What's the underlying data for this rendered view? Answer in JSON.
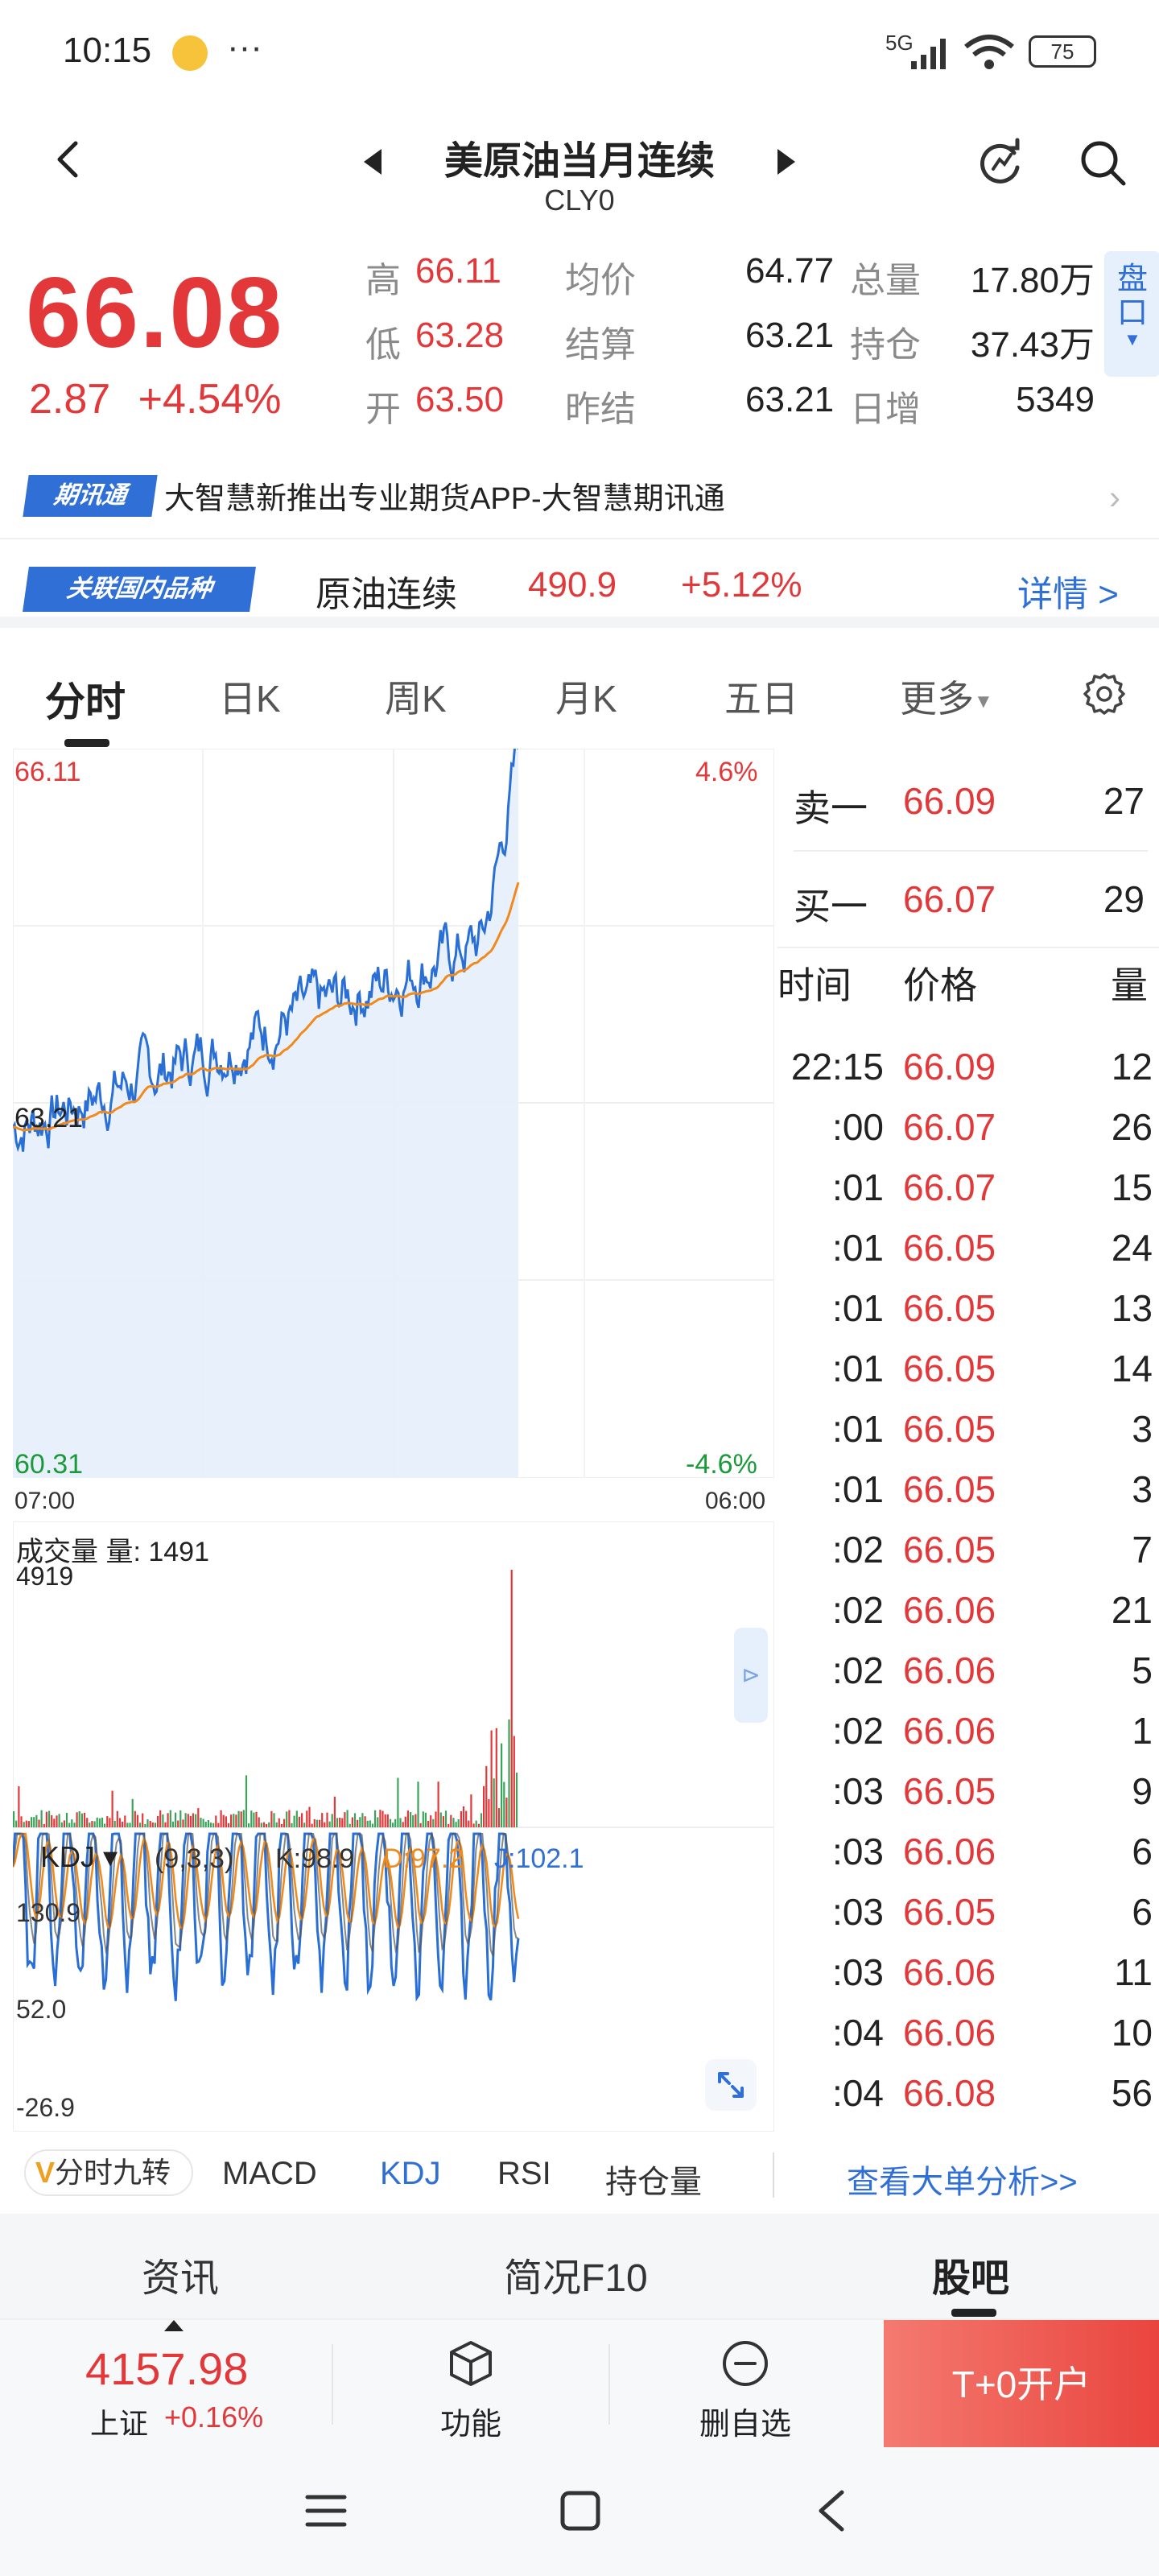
{
  "status_bar": {
    "time": "10:15",
    "dots": "···",
    "network": "5G",
    "battery": "75"
  },
  "header": {
    "title": "美原油当月连续",
    "subtitle": "CLY0"
  },
  "quote": {
    "last_price": "66.08",
    "change": "2.87",
    "change_pct": "+4.54%",
    "high_label": "高",
    "high": "66.11",
    "low_label": "低",
    "low": "63.28",
    "open_label": "开",
    "open": "63.50",
    "avg_label": "均价",
    "avg": "64.77",
    "settle_label": "结算",
    "settle": "63.21",
    "prev_settle_label": "昨结",
    "prev_settle": "63.21",
    "volume_label": "总量",
    "volume": "17.80万",
    "oi_label": "持仓",
    "oi": "37.43万",
    "daily_inc_label": "日增",
    "daily_inc": "5349",
    "pankou_label": "盘口"
  },
  "news": {
    "badge": "期讯通",
    "text": "大智慧新推出专业期货APP-大智慧期讯通"
  },
  "related": {
    "badge": "关联国内品种",
    "name": "原油连续",
    "price": "490.9",
    "change": "+5.12%",
    "detail": "详情 >"
  },
  "chart_tabs": [
    "分时",
    "日K",
    "周K",
    "月K",
    "五日",
    "更多"
  ],
  "chart": {
    "high": "66.11",
    "mid": "63.21",
    "low": "60.31",
    "pct_high": "4.6%",
    "pct_low": "-4.6%",
    "time_start": "07:00",
    "time_end": "06:00",
    "volume_label": "成交量 量: 1491",
    "volume_max": "4919",
    "kdj_name": "KDJ ▾",
    "kdj_params": "(9,3,3)",
    "kdj_k": "K:98.9",
    "kdj_d": "D:97.2",
    "kdj_j": "J:102.1",
    "kdj_y1": "130.9",
    "kdj_y2": "52.0",
    "kdj_y3": "-26.9"
  },
  "orderbook": {
    "sell_label": "卖一",
    "sell_price": "66.09",
    "sell_qty": "27",
    "buy_label": "买一",
    "buy_price": "66.07",
    "buy_qty": "29",
    "head_time": "时间",
    "head_price": "价格",
    "head_qty": "量",
    "ticks": [
      {
        "time": "22:15",
        "price": "66.09",
        "qty": "12"
      },
      {
        "time": ":00",
        "price": "66.07",
        "qty": "26"
      },
      {
        "time": ":01",
        "price": "66.07",
        "qty": "15"
      },
      {
        "time": ":01",
        "price": "66.05",
        "qty": "24"
      },
      {
        "time": ":01",
        "price": "66.05",
        "qty": "13"
      },
      {
        "time": ":01",
        "price": "66.05",
        "qty": "14"
      },
      {
        "time": ":01",
        "price": "66.05",
        "qty": "3"
      },
      {
        "time": ":01",
        "price": "66.05",
        "qty": "3"
      },
      {
        "time": ":02",
        "price": "66.05",
        "qty": "7"
      },
      {
        "time": ":02",
        "price": "66.06",
        "qty": "21"
      },
      {
        "time": ":02",
        "price": "66.06",
        "qty": "5"
      },
      {
        "time": ":02",
        "price": "66.06",
        "qty": "1"
      },
      {
        "time": ":03",
        "price": "66.05",
        "qty": "9"
      },
      {
        "time": ":03",
        "price": "66.06",
        "qty": "6"
      },
      {
        "time": ":03",
        "price": "66.05",
        "qty": "6"
      },
      {
        "time": ":03",
        "price": "66.06",
        "qty": "11"
      },
      {
        "time": ":04",
        "price": "66.06",
        "qty": "10"
      },
      {
        "time": ":04",
        "price": "66.08",
        "qty": "56"
      }
    ]
  },
  "indicators": {
    "jiuzhuan": "分时九转",
    "tabs": [
      "MACD",
      "KDJ",
      "RSI",
      "持仓量"
    ],
    "big_order": "查看大单分析>>"
  },
  "bottom_tabs": [
    "资讯",
    "简况F10",
    "股吧"
  ],
  "footer": {
    "index_value": "4157.98",
    "index_name": "上证",
    "index_change": "+0.16%",
    "func_label": "功能",
    "delete_label": "删自选",
    "open_account": "T+0开户"
  }
}
